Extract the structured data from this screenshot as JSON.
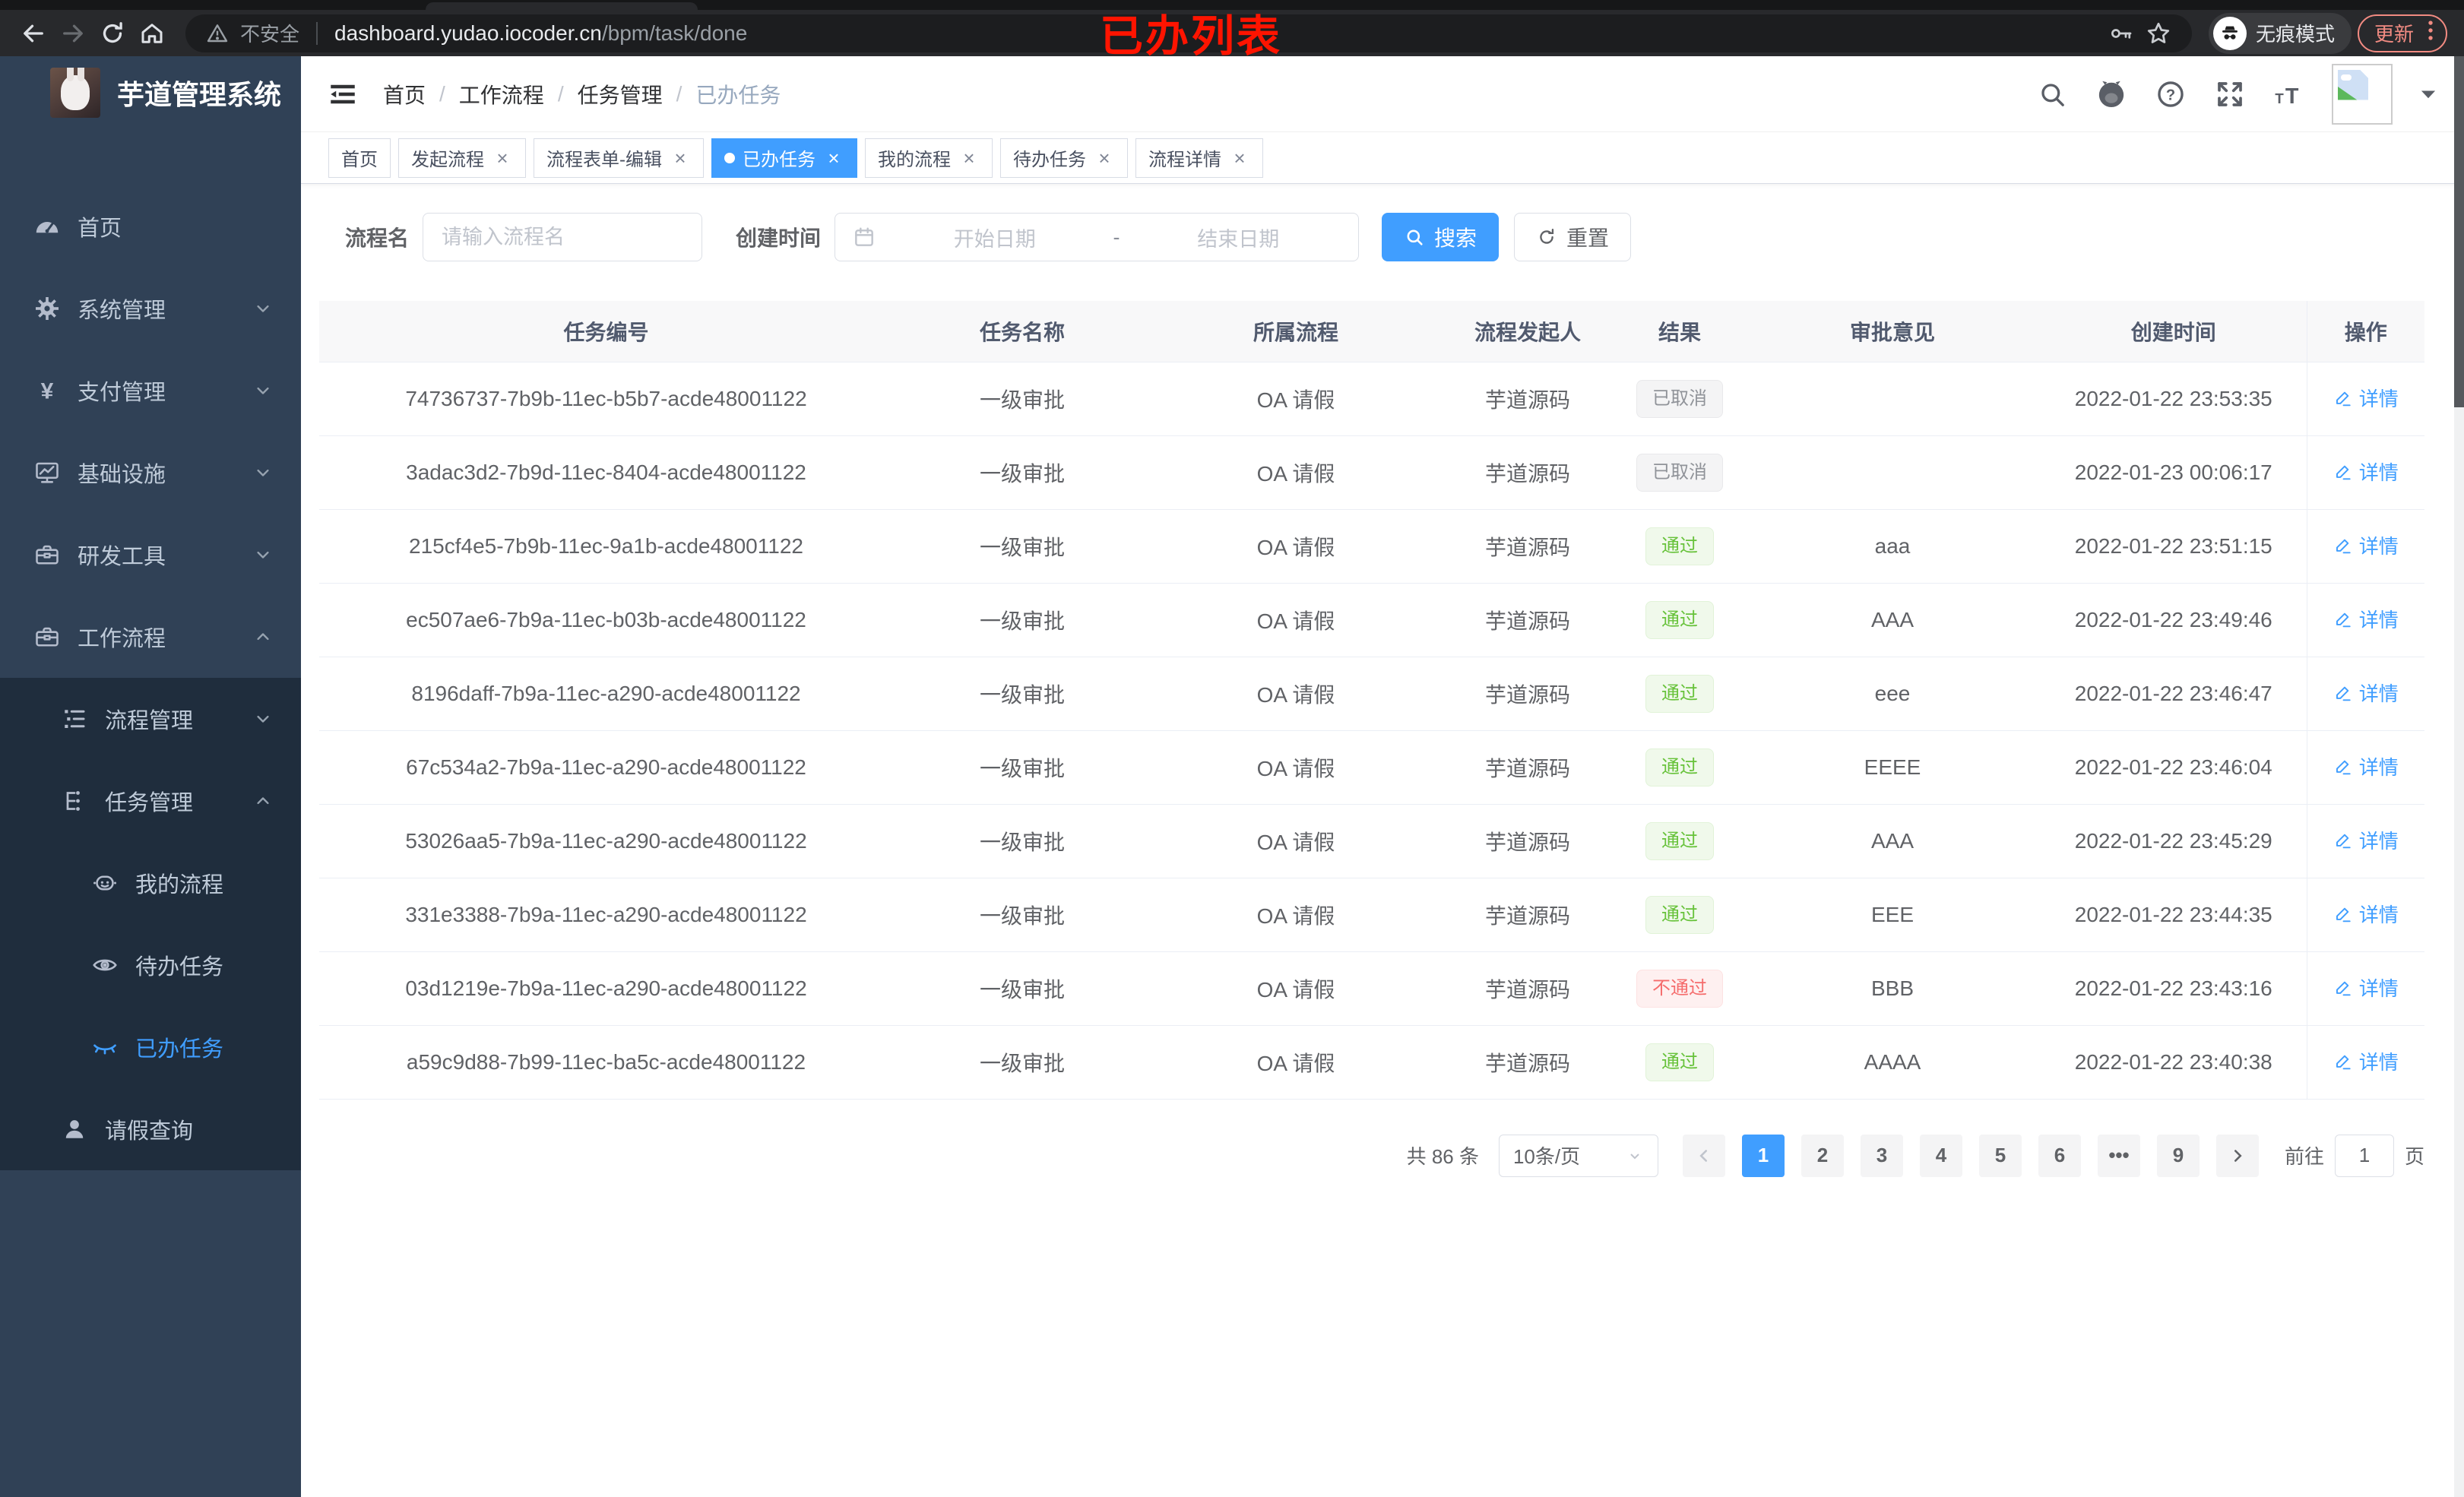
{
  "browser": {
    "security_label": "不安全",
    "url_host": "dashboard.yudao.iocoder.cn",
    "url_path": "/bpm/task/done",
    "overlay_title": "已办列表",
    "incognito_label": "无痕模式",
    "update_label": "更新"
  },
  "sidebar": {
    "app_title": "芋道管理系统",
    "items": [
      {
        "id": "home",
        "label": "首页",
        "icon": "dashboard",
        "level": 1,
        "sub": false,
        "chevron": "",
        "active": false
      },
      {
        "id": "system",
        "label": "系统管理",
        "icon": "gear",
        "level": 1,
        "sub": false,
        "chevron": "down",
        "active": false
      },
      {
        "id": "payment",
        "label": "支付管理",
        "icon": "yen",
        "level": 1,
        "sub": false,
        "chevron": "down",
        "active": false
      },
      {
        "id": "infra",
        "label": "基础设施",
        "icon": "monitor",
        "level": 1,
        "sub": false,
        "chevron": "down",
        "active": false
      },
      {
        "id": "devtools",
        "label": "研发工具",
        "icon": "toolbox",
        "level": 1,
        "sub": false,
        "chevron": "down",
        "active": false
      },
      {
        "id": "workflow",
        "label": "工作流程",
        "icon": "briefcase",
        "level": 1,
        "sub": false,
        "chevron": "up",
        "active": false
      },
      {
        "id": "process-mgmt",
        "label": "流程管理",
        "icon": "list-tree",
        "level": 2,
        "sub": true,
        "chevron": "down",
        "active": false
      },
      {
        "id": "task-mgmt",
        "label": "任务管理",
        "icon": "org",
        "level": 2,
        "sub": true,
        "chevron": "up",
        "active": false
      },
      {
        "id": "my-process",
        "label": "我的流程",
        "icon": "robot",
        "level": 3,
        "sub": true,
        "chevron": "",
        "active": false
      },
      {
        "id": "todo-tasks",
        "label": "待办任务",
        "icon": "eye",
        "level": 3,
        "sub": true,
        "chevron": "",
        "active": false
      },
      {
        "id": "done-tasks",
        "label": "已办任务",
        "icon": "eye-closed",
        "level": 3,
        "sub": true,
        "chevron": "",
        "active": true
      },
      {
        "id": "leave-query",
        "label": "请假查询",
        "icon": "user",
        "level": 2,
        "sub": true,
        "chevron": "",
        "active": false
      }
    ]
  },
  "header": {
    "breadcrumb": [
      "首页",
      "工作流程",
      "任务管理",
      "已办任务"
    ]
  },
  "tabs": [
    {
      "label": "首页",
      "closable": false,
      "active": false
    },
    {
      "label": "发起流程",
      "closable": true,
      "active": false
    },
    {
      "label": "流程表单-编辑",
      "closable": true,
      "active": false
    },
    {
      "label": "已办任务",
      "closable": true,
      "active": true
    },
    {
      "label": "我的流程",
      "closable": true,
      "active": false
    },
    {
      "label": "待办任务",
      "closable": true,
      "active": false
    },
    {
      "label": "流程详情",
      "closable": true,
      "active": false
    }
  ],
  "filters": {
    "name_label": "流程名",
    "name_placeholder": "请输入流程名",
    "time_label": "创建时间",
    "start_placeholder": "开始日期",
    "range_separator": "-",
    "end_placeholder": "结束日期",
    "search_label": "搜索",
    "reset_label": "重置"
  },
  "table": {
    "columns": [
      "任务编号",
      "任务名称",
      "所属流程",
      "流程发起人",
      "结果",
      "审批意见",
      "创建时间",
      "操作"
    ],
    "action_label": "详情",
    "rows": [
      {
        "id": "74736737-7b9b-11ec-b5b7-acde48001122",
        "name": "一级审批",
        "process": "OA 请假",
        "starter": "芋道源码",
        "result": "已取消",
        "result_type": "info",
        "comment": "",
        "created": "2022-01-22 23:53:35"
      },
      {
        "id": "3adac3d2-7b9d-11ec-8404-acde48001122",
        "name": "一级审批",
        "process": "OA 请假",
        "starter": "芋道源码",
        "result": "已取消",
        "result_type": "info",
        "comment": "",
        "created": "2022-01-23 00:06:17"
      },
      {
        "id": "215cf4e5-7b9b-11ec-9a1b-acde48001122",
        "name": "一级审批",
        "process": "OA 请假",
        "starter": "芋道源码",
        "result": "通过",
        "result_type": "success",
        "comment": "aaa",
        "created": "2022-01-22 23:51:15"
      },
      {
        "id": "ec507ae6-7b9a-11ec-b03b-acde48001122",
        "name": "一级审批",
        "process": "OA 请假",
        "starter": "芋道源码",
        "result": "通过",
        "result_type": "success",
        "comment": "AAA",
        "created": "2022-01-22 23:49:46"
      },
      {
        "id": "8196daff-7b9a-11ec-a290-acde48001122",
        "name": "一级审批",
        "process": "OA 请假",
        "starter": "芋道源码",
        "result": "通过",
        "result_type": "success",
        "comment": "eee",
        "created": "2022-01-22 23:46:47"
      },
      {
        "id": "67c534a2-7b9a-11ec-a290-acde48001122",
        "name": "一级审批",
        "process": "OA 请假",
        "starter": "芋道源码",
        "result": "通过",
        "result_type": "success",
        "comment": "EEEE",
        "created": "2022-01-22 23:46:04"
      },
      {
        "id": "53026aa5-7b9a-11ec-a290-acde48001122",
        "name": "一级审批",
        "process": "OA 请假",
        "starter": "芋道源码",
        "result": "通过",
        "result_type": "success",
        "comment": "AAA",
        "created": "2022-01-22 23:45:29"
      },
      {
        "id": "331e3388-7b9a-11ec-a290-acde48001122",
        "name": "一级审批",
        "process": "OA 请假",
        "starter": "芋道源码",
        "result": "通过",
        "result_type": "success",
        "comment": "EEE",
        "created": "2022-01-22 23:44:35"
      },
      {
        "id": "03d1219e-7b9a-11ec-a290-acde48001122",
        "name": "一级审批",
        "process": "OA 请假",
        "starter": "芋道源码",
        "result": "不通过",
        "result_type": "danger",
        "comment": "BBB",
        "created": "2022-01-22 23:43:16"
      },
      {
        "id": "a59c9d88-7b99-11ec-ba5c-acde48001122",
        "name": "一级审批",
        "process": "OA 请假",
        "starter": "芋道源码",
        "result": "通过",
        "result_type": "success",
        "comment": "AAAA",
        "created": "2022-01-22 23:40:38"
      }
    ]
  },
  "pagination": {
    "total_text": "共 86 条",
    "page_size": "10条/页",
    "pages": [
      {
        "label": "1",
        "active": true
      },
      {
        "label": "2",
        "active": false
      },
      {
        "label": "3",
        "active": false
      },
      {
        "label": "4",
        "active": false
      },
      {
        "label": "5",
        "active": false
      },
      {
        "label": "6",
        "active": false
      },
      {
        "label": "•••",
        "active": false,
        "ellipsis": true
      },
      {
        "label": "9",
        "active": false
      }
    ],
    "goto_label": "前往",
    "goto_value": "1",
    "page_unit": "页"
  },
  "colors": {
    "accent": "#409eff",
    "sidebar_bg": "#304156",
    "sidebar_sub_bg": "#1f2d3d",
    "success": "#67c23a",
    "danger": "#f56c6c",
    "info_text": "#909399",
    "overlay_red": "#ff1400"
  }
}
